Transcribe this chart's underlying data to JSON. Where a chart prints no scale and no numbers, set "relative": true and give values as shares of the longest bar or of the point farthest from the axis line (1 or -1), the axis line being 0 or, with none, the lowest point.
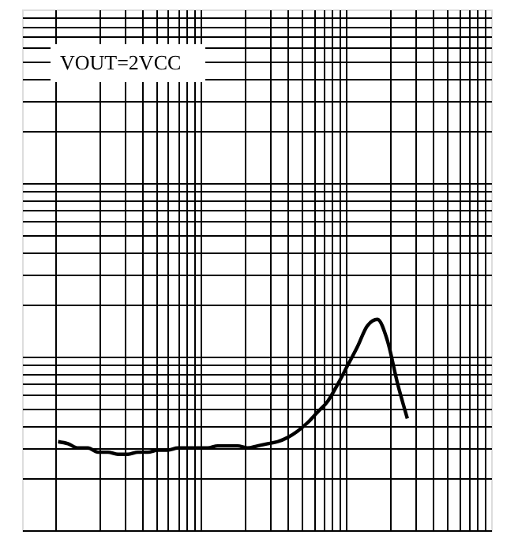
{
  "chart_data": {
    "type": "line",
    "relative": true,
    "grid": true,
    "tick_labels": false,
    "annotations": [
      "VOUT=2VCC"
    ],
    "categories": [
      null,
      null,
      null,
      null,
      null,
      null,
      null,
      null,
      null,
      null,
      null,
      null,
      null,
      null,
      null,
      null,
      null,
      null,
      null,
      null,
      null,
      null,
      null,
      null,
      null,
      null,
      null,
      null,
      null,
      null,
      null,
      null,
      null,
      null,
      null,
      null
    ],
    "series": [
      {
        "color": "#000000",
        "values": [
          0.42,
          0.41,
          0.39,
          0.39,
          0.37,
          0.37,
          0.36,
          0.36,
          0.37,
          0.37,
          0.38,
          0.38,
          0.39,
          0.39,
          0.39,
          0.39,
          0.4,
          0.4,
          0.4,
          0.39,
          0.4,
          0.41,
          0.42,
          0.44,
          0.47,
          0.51,
          0.56,
          0.61,
          0.69,
          0.78,
          0.87,
          0.97,
          1,
          0.9,
          0.7,
          0.53
        ]
      }
    ]
  }
}
